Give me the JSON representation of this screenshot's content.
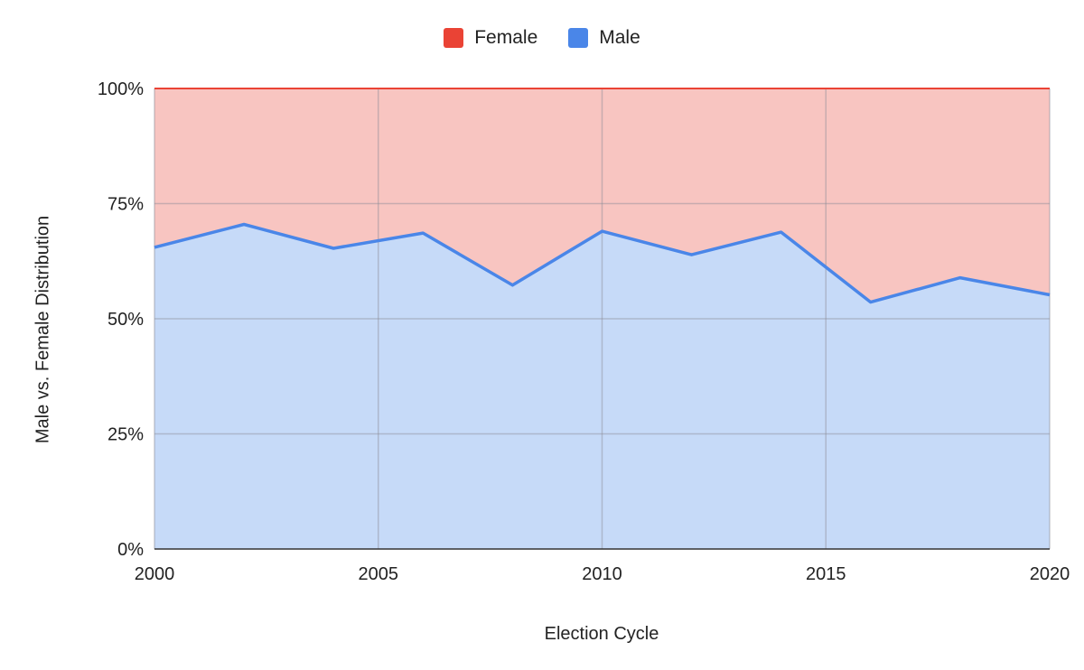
{
  "chart_data": {
    "type": "area",
    "stacked": "percent",
    "x": [
      2000,
      2002,
      2004,
      2006,
      2008,
      2010,
      2012,
      2014,
      2016,
      2018,
      2020
    ],
    "series": [
      {
        "name": "Male",
        "values": [
          65.5,
          70.5,
          65.3,
          68.6,
          57.3,
          69.0,
          63.9,
          68.8,
          53.6,
          58.9,
          55.2
        ],
        "color": "#4a86e8",
        "fill": "#c6daf8"
      },
      {
        "name": "Female",
        "values": [
          34.5,
          29.5,
          34.7,
          31.4,
          42.7,
          31.0,
          36.1,
          31.2,
          46.4,
          41.1,
          44.8
        ],
        "color": "#ea4335",
        "fill": "#f8c5c1"
      }
    ],
    "xlabel": "Election Cycle",
    "ylabel": "Male vs. Female Distribution",
    "xlim": [
      2000,
      2020
    ],
    "ylim": [
      0,
      100
    ],
    "x_ticks": [
      2000,
      2005,
      2010,
      2015,
      2020
    ],
    "y_ticks": [
      0,
      25,
      50,
      75,
      100
    ],
    "y_tick_labels": [
      "0%",
      "25%",
      "50%",
      "75%",
      "100%"
    ],
    "legend_position": "top",
    "legend": [
      "Female",
      "Male"
    ],
    "grid": true
  }
}
